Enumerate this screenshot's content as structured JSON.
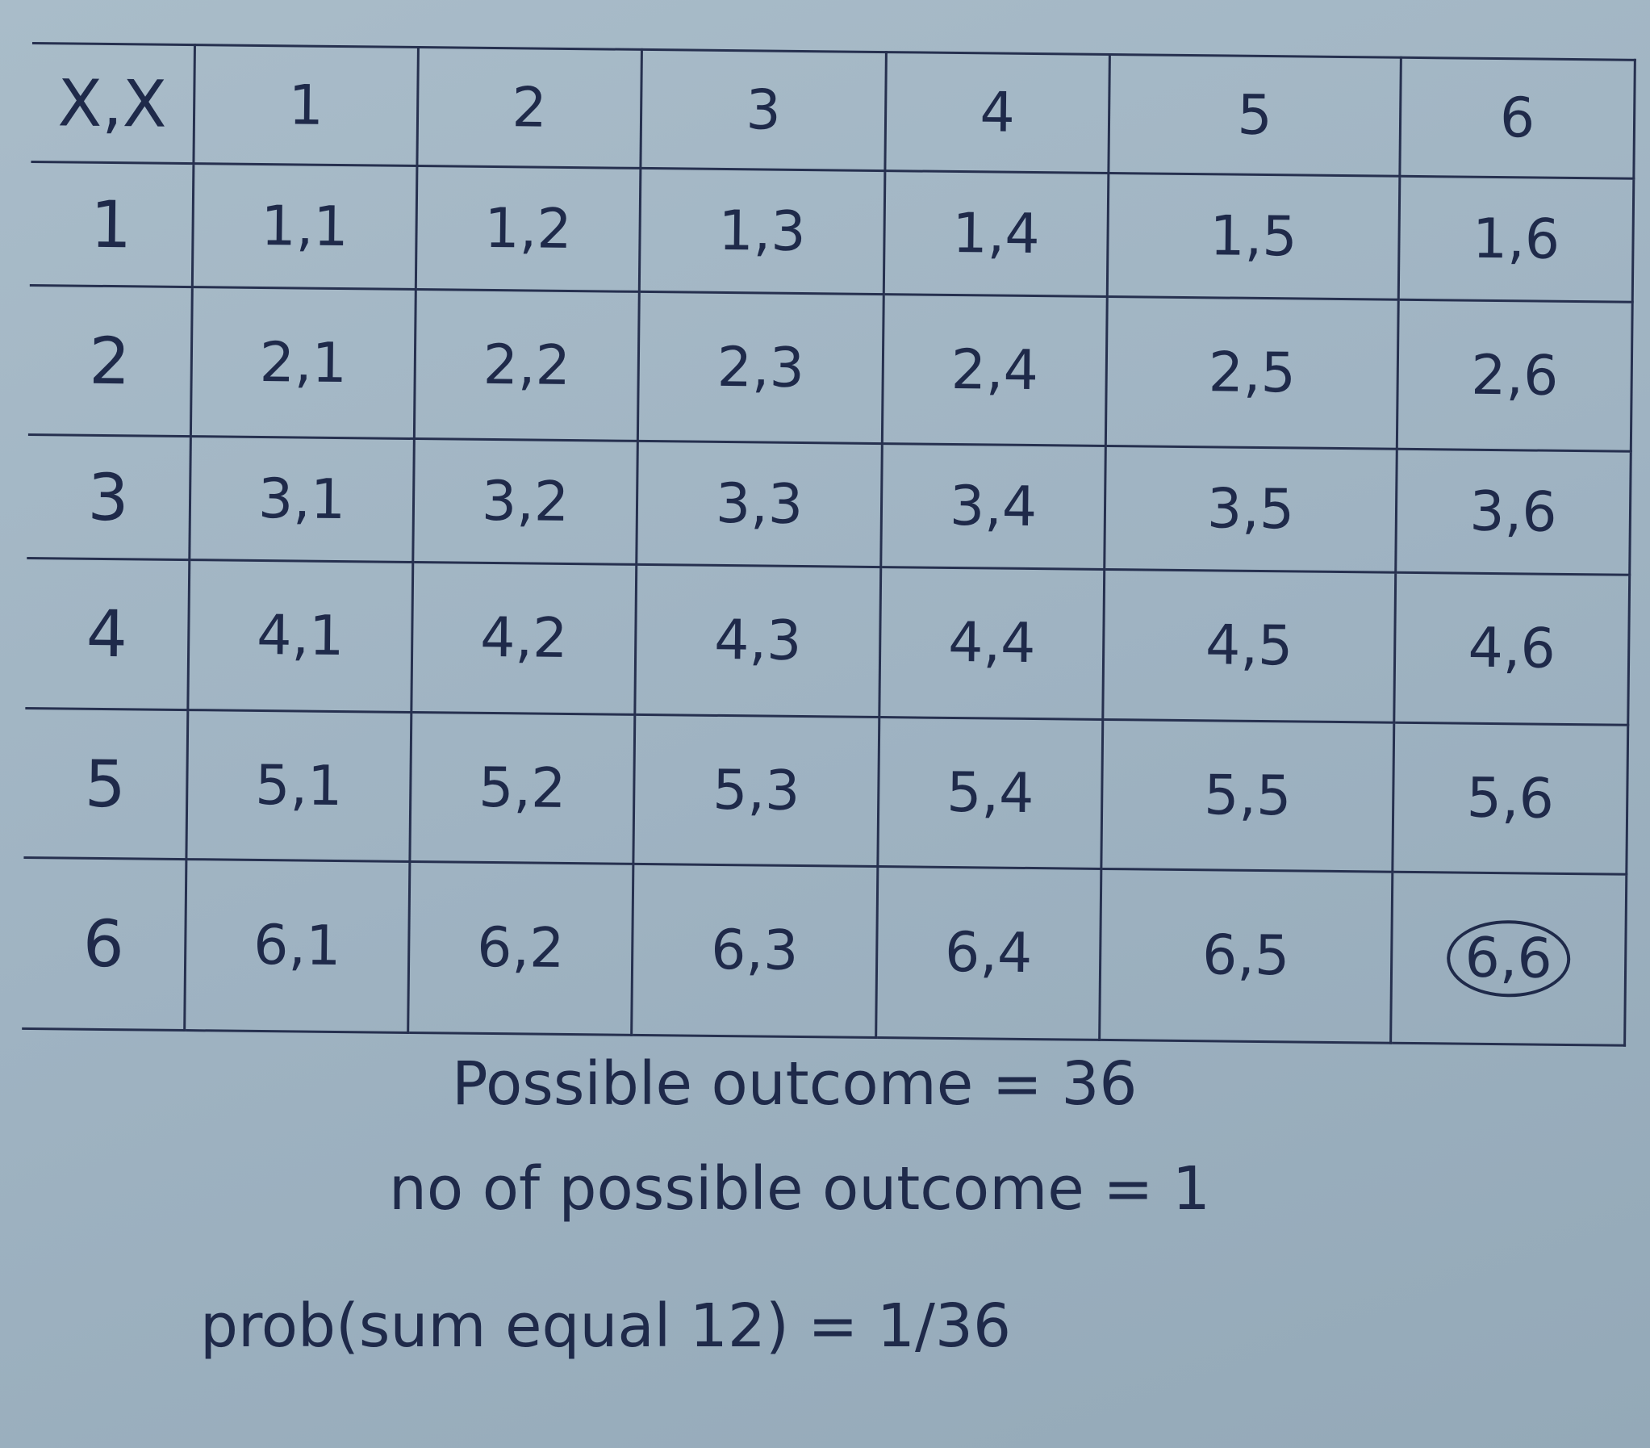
{
  "table": {
    "corner": "X,X",
    "columns": [
      "1",
      "2",
      "3",
      "4",
      "5",
      "6"
    ],
    "rows": [
      {
        "label": "1",
        "cells": [
          "1,1",
          "1,2",
          "1,3",
          "1,4",
          "1,5",
          "1,6"
        ]
      },
      {
        "label": "2",
        "cells": [
          "2,1",
          "2,2",
          "2,3",
          "2,4",
          "2,5",
          "2,6"
        ]
      },
      {
        "label": "3",
        "cells": [
          "3,1",
          "3,2",
          "3,3",
          "3,4",
          "3,5",
          "3,6"
        ]
      },
      {
        "label": "4",
        "cells": [
          "4,1",
          "4,2",
          "4,3",
          "4,4",
          "4,5",
          "4,6"
        ]
      },
      {
        "label": "5",
        "cells": [
          "5,1",
          "5,2",
          "5,3",
          "5,4",
          "5,5",
          "5,6"
        ]
      },
      {
        "label": "6",
        "cells": [
          "6,1",
          "6,2",
          "6,3",
          "6,4",
          "6,5",
          "6,6"
        ]
      }
    ],
    "circled_cell": "6,6"
  },
  "notes": {
    "line1": "Possible outcome = 36",
    "line2": "no of possible outcome = 1",
    "line3": "prob(sum equal 12) = 1/36"
  }
}
